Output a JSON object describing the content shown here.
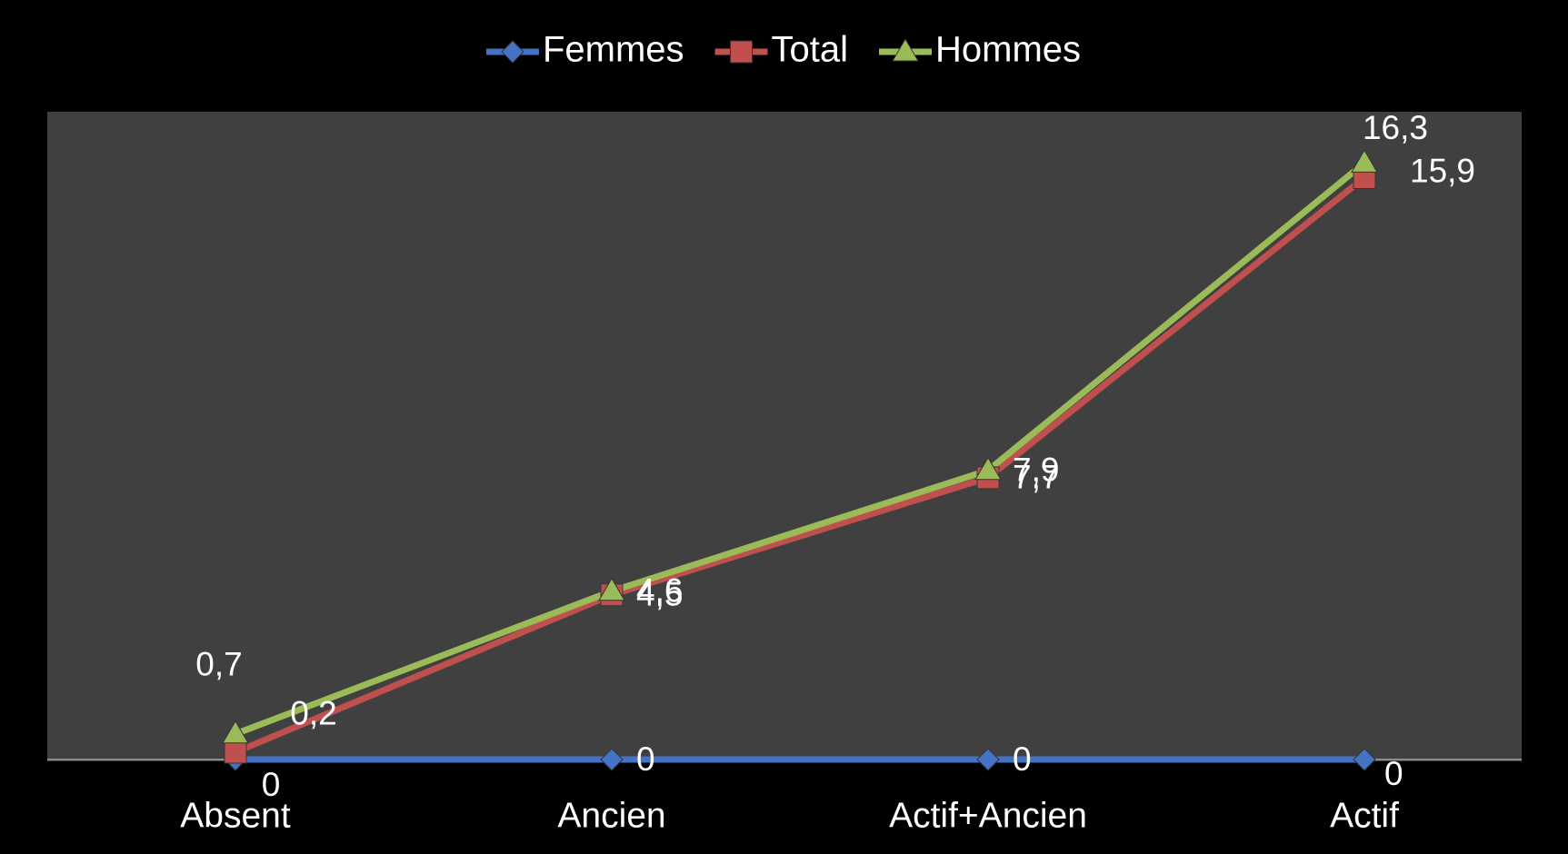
{
  "chart_data": {
    "type": "line",
    "categories": [
      "Absent",
      "Ancien",
      "Actif+Ancien",
      "Actif"
    ],
    "series": [
      {
        "name": "Femmes",
        "color": "#4472c4",
        "marker": "diamond",
        "values": [
          0,
          0,
          0,
          0
        ]
      },
      {
        "name": "Total",
        "color": "#c0504d",
        "marker": "square",
        "values": [
          0.2,
          4.5,
          7.7,
          15.9
        ],
        "value_labels": [
          "0,2",
          "4,5",
          "7,7",
          "15,9"
        ]
      },
      {
        "name": "Hommes",
        "color": "#9bbb59",
        "marker": "triangle",
        "values": [
          0.7,
          4.6,
          7.9,
          16.3
        ],
        "value_labels": [
          "0,7",
          "4,6",
          "7,9",
          "16,3"
        ]
      }
    ],
    "ylim": [
      0,
      17.7
    ],
    "legend": "top",
    "grid": false
  }
}
